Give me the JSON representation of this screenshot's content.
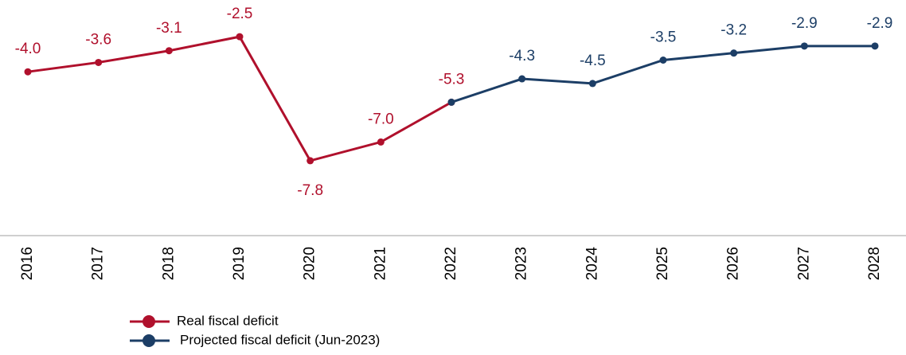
{
  "chart_data": {
    "type": "line",
    "categories": [
      "2016",
      "2017",
      "2018",
      "2019",
      "2020",
      "2021",
      "2022",
      "2023",
      "2024",
      "2025",
      "2026",
      "2027",
      "2028"
    ],
    "series": [
      {
        "name": "Real fiscal deficit",
        "color": "#b0102c",
        "values": [
          -4.0,
          -3.6,
          -3.1,
          -2.5,
          -7.8,
          -7.0,
          -5.3,
          null,
          null,
          null,
          null,
          null,
          null
        ],
        "value_labels": [
          "-4.0",
          "-3.6",
          "-3.1",
          "-2.5",
          "-7.8",
          "-7.0",
          "-5.3",
          null,
          null,
          null,
          null,
          null,
          null
        ]
      },
      {
        "name": "Projected fiscal deficit (Jun-2023)",
        "color": "#1c3e66",
        "values": [
          null,
          null,
          null,
          null,
          null,
          null,
          -5.3,
          -4.3,
          -4.5,
          -3.5,
          -3.2,
          -2.9,
          -2.9
        ],
        "value_labels": [
          null,
          null,
          null,
          null,
          null,
          null,
          null,
          "-4.3",
          "-4.5",
          "-3.5",
          "-3.2",
          "-2.9",
          "-2.9"
        ]
      }
    ],
    "ylim": [
      -11,
      -1
    ],
    "legend": "bottom-left"
  }
}
